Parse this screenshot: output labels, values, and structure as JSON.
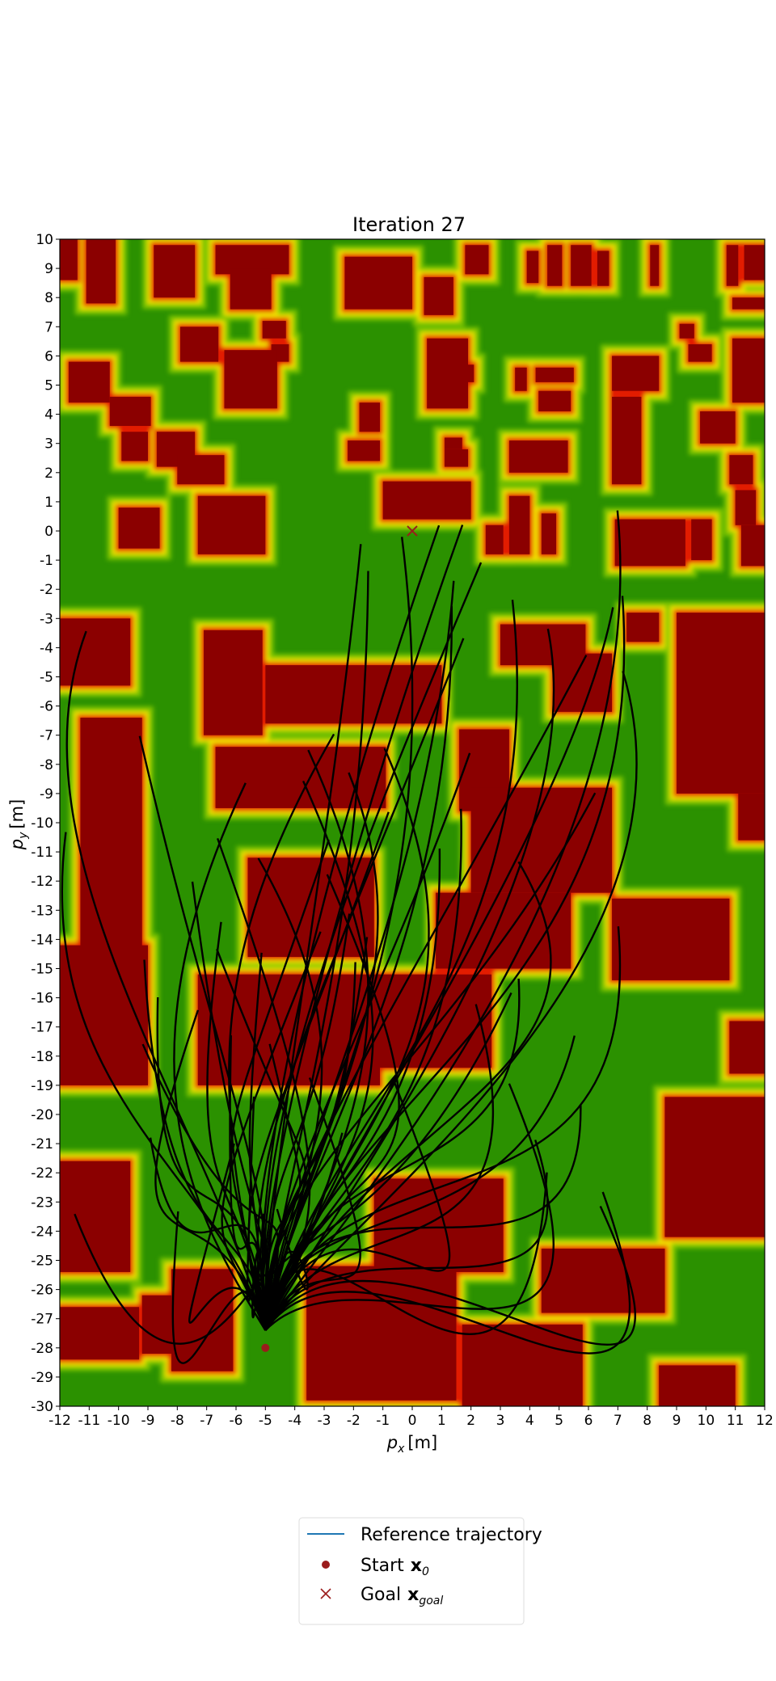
{
  "chart_data": {
    "type": "scatter",
    "title": "Iteration 27",
    "xlabel": "[m]",
    "xlabel_symbol": "p",
    "xlabel_sub": "x",
    "ylabel": "[m]",
    "ylabel_symbol": "p",
    "ylabel_sub": "y",
    "xlim": [
      -12,
      12
    ],
    "ylim": [
      -30,
      10
    ],
    "grid": false,
    "xticks": [
      "-12",
      "-11",
      "-10",
      "-9",
      "-8",
      "-7",
      "-6",
      "-5",
      "-4",
      "-3",
      "-2",
      "-1",
      "0",
      "1",
      "2",
      "3",
      "4",
      "5",
      "6",
      "7",
      "8",
      "9",
      "10",
      "11",
      "12"
    ],
    "yticks": [
      "10",
      "9",
      "8",
      "7",
      "6",
      "5",
      "4",
      "3",
      "2",
      "1",
      "0",
      "-1",
      "-2",
      "-3",
      "-4",
      "-5",
      "-6",
      "-7",
      "-8",
      "-9",
      "-10",
      "-11",
      "-12",
      "-13",
      "-14",
      "-15",
      "-16",
      "-17",
      "-18",
      "-19",
      "-20",
      "-21",
      "-22",
      "-23",
      "-24",
      "-25",
      "-26",
      "-27",
      "-28",
      "-29",
      "-30"
    ],
    "background": "costmap",
    "costmap_colors": {
      "low": "#2b9100",
      "mid_low": "#7cc400",
      "mid": "#f2e600",
      "mid_high": "#ff9a00",
      "high": "#e21a00",
      "obstacle": "#8b0000"
    },
    "obstacles": [
      {
        "x0": -12,
        "x1": -11.4,
        "y0": 8.6,
        "y1": 10
      },
      {
        "x0": -11.1,
        "x1": -10.1,
        "y0": 7.8,
        "y1": 10
      },
      {
        "x0": -8.8,
        "x1": -7.4,
        "y0": 8,
        "y1": 9.8
      },
      {
        "x0": -6.7,
        "x1": -4.2,
        "y0": 8.8,
        "y1": 9.8
      },
      {
        "x0": -6.2,
        "x1": -4.8,
        "y0": 7.6,
        "y1": 9
      },
      {
        "x0": -2.3,
        "x1": 0,
        "y0": 7.6,
        "y1": 9.4
      },
      {
        "x0": 0.4,
        "x1": 1.4,
        "y0": 7.4,
        "y1": 8.7
      },
      {
        "x0": 1.8,
        "x1": 2.6,
        "y0": 8.8,
        "y1": 9.8
      },
      {
        "x0": 3.9,
        "x1": 4.3,
        "y0": 8.5,
        "y1": 9.6
      },
      {
        "x0": 4.6,
        "x1": 5.1,
        "y0": 8.4,
        "y1": 9.8
      },
      {
        "x0": 5.4,
        "x1": 6.1,
        "y0": 8.4,
        "y1": 9.8
      },
      {
        "x0": 6.3,
        "x1": 6.7,
        "y0": 8.4,
        "y1": 9.6
      },
      {
        "x0": 8.1,
        "x1": 8.4,
        "y0": 8.4,
        "y1": 9.8
      },
      {
        "x0": 10.7,
        "x1": 11.1,
        "y0": 8.4,
        "y1": 9.8
      },
      {
        "x0": 11.3,
        "x1": 12,
        "y0": 8.6,
        "y1": 9.8
      },
      {
        "x0": 10.9,
        "x1": 12,
        "y0": 7.6,
        "y1": 8
      },
      {
        "x0": -7.9,
        "x1": -6.6,
        "y0": 5.8,
        "y1": 7
      },
      {
        "x0": -5.1,
        "x1": -4.3,
        "y0": 6.6,
        "y1": 7.2
      },
      {
        "x0": -4.8,
        "x1": -4.2,
        "y0": 5.8,
        "y1": 6.4
      },
      {
        "x0": -6.4,
        "x1": -4.6,
        "y0": 4.2,
        "y1": 6.2
      },
      {
        "x0": 0.5,
        "x1": 1.9,
        "y0": 4.2,
        "y1": 6.6
      },
      {
        "x0": 1.7,
        "x1": 2.1,
        "y0": 5.1,
        "y1": 5.7
      },
      {
        "x0": 3.5,
        "x1": 3.9,
        "y0": 4.8,
        "y1": 5.6
      },
      {
        "x0": 4.2,
        "x1": 5.5,
        "y0": 5.1,
        "y1": 5.6
      },
      {
        "x0": 4.3,
        "x1": 5.4,
        "y0": 4.1,
        "y1": 4.8
      },
      {
        "x0": 6.8,
        "x1": 8.4,
        "y0": 4.8,
        "y1": 6
      },
      {
        "x0": 9.1,
        "x1": 9.6,
        "y0": 6.6,
        "y1": 7.1
      },
      {
        "x0": 9.4,
        "x1": 10.2,
        "y0": 5.8,
        "y1": 6.4
      },
      {
        "x0": 10.9,
        "x1": 12,
        "y0": 4.4,
        "y1": 6.6
      },
      {
        "x0": -11.7,
        "x1": -10.3,
        "y0": 4.4,
        "y1": 5.8
      },
      {
        "x0": -10.3,
        "x1": -8.9,
        "y0": 3.6,
        "y1": 4.6
      },
      {
        "x0": -9.9,
        "x1": -9,
        "y0": 2.4,
        "y1": 3.4
      },
      {
        "x0": -8.7,
        "x1": -7.4,
        "y0": 2.2,
        "y1": 3.4
      },
      {
        "x0": -1.8,
        "x1": -1.1,
        "y0": 3.4,
        "y1": 4.4
      },
      {
        "x0": -2.2,
        "x1": -1.1,
        "y0": 2.4,
        "y1": 3.1
      },
      {
        "x0": 1.1,
        "x1": 1.7,
        "y0": 2.8,
        "y1": 3.2
      },
      {
        "x0": 1.1,
        "x1": 1.9,
        "y0": 2.2,
        "y1": 2.8
      },
      {
        "x0": 3.3,
        "x1": 5.3,
        "y0": 2,
        "y1": 3.1
      },
      {
        "x0": 6.8,
        "x1": 7.8,
        "y0": 1.6,
        "y1": 4.6
      },
      {
        "x0": 9.8,
        "x1": 11,
        "y0": 3,
        "y1": 4.1
      },
      {
        "x0": 10.8,
        "x1": 11.6,
        "y0": 1.6,
        "y1": 2.6
      },
      {
        "x0": -8,
        "x1": -6.4,
        "y0": 1.6,
        "y1": 2.6
      },
      {
        "x0": -1,
        "x1": 2,
        "y0": 0.4,
        "y1": 1.7
      },
      {
        "x0": 3.3,
        "x1": 4,
        "y0": -0.8,
        "y1": 1.2
      },
      {
        "x0": 2.5,
        "x1": 3.1,
        "y0": -0.8,
        "y1": 0.2
      },
      {
        "x0": 4.4,
        "x1": 4.9,
        "y0": -0.8,
        "y1": 0.6
      },
      {
        "x0": -10,
        "x1": -8.6,
        "y0": -0.6,
        "y1": 0.8
      },
      {
        "x0": -7.3,
        "x1": -5,
        "y0": -0.8,
        "y1": 1.2
      },
      {
        "x0": 6.9,
        "x1": 9.3,
        "y0": -1.2,
        "y1": 0.4
      },
      {
        "x0": 9.5,
        "x1": 10.2,
        "y0": -1,
        "y1": 0.4
      },
      {
        "x0": 11,
        "x1": 11.7,
        "y0": 0.2,
        "y1": 1.4
      },
      {
        "x0": 11.2,
        "x1": 12,
        "y0": -1.2,
        "y1": 0.2
      },
      {
        "x0": -12,
        "x1": -9.6,
        "y0": -5.3,
        "y1": -3
      },
      {
        "x0": -7.1,
        "x1": -5.1,
        "y0": -7,
        "y1": -3.4
      },
      {
        "x0": -5,
        "x1": 1,
        "y0": -6.6,
        "y1": -4.6
      },
      {
        "x0": 3,
        "x1": 5.9,
        "y0": -4.6,
        "y1": -3.2
      },
      {
        "x0": 4.8,
        "x1": 6.8,
        "y0": -6.2,
        "y1": -4.2
      },
      {
        "x0": 7.3,
        "x1": 8.4,
        "y0": -3.8,
        "y1": -2.8
      },
      {
        "x0": 9,
        "x1": 12,
        "y0": -9,
        "y1": -2.8
      },
      {
        "x0": 11.1,
        "x1": 12,
        "y0": -10.6,
        "y1": -9
      },
      {
        "x0": -11.3,
        "x1": -9.2,
        "y0": -19,
        "y1": -6.4
      },
      {
        "x0": -6.7,
        "x1": -0.9,
        "y0": -9.5,
        "y1": -7.4
      },
      {
        "x0": 1.6,
        "x1": 3.3,
        "y0": -9.6,
        "y1": -6.8
      },
      {
        "x0": 2,
        "x1": 6.8,
        "y0": -12.4,
        "y1": -8.8
      },
      {
        "x0": -5.6,
        "x1": -1.3,
        "y0": -14.6,
        "y1": -11.2
      },
      {
        "x0": 0.8,
        "x1": 5.4,
        "y0": -15,
        "y1": -12.4
      },
      {
        "x0": -12,
        "x1": -9,
        "y0": -19,
        "y1": -14.2
      },
      {
        "x0": -7.3,
        "x1": -1.1,
        "y0": -19,
        "y1": -15.2
      },
      {
        "x0": -1.2,
        "x1": 2.7,
        "y0": -18.4,
        "y1": -15.2
      },
      {
        "x0": 6.8,
        "x1": 10.8,
        "y0": -15.4,
        "y1": -12.6
      },
      {
        "x0": 10.8,
        "x1": 12,
        "y0": -18.6,
        "y1": -16.8
      },
      {
        "x0": 8.6,
        "x1": 12,
        "y0": -24.2,
        "y1": -19.4
      },
      {
        "x0": -12,
        "x1": -9.6,
        "y0": -25.4,
        "y1": -21.6
      },
      {
        "x0": -1.3,
        "x1": 3.1,
        "y0": -25.4,
        "y1": -22.2
      },
      {
        "x0": 4.4,
        "x1": 8.6,
        "y0": -26.8,
        "y1": -24.6
      },
      {
        "x0": -12,
        "x1": -9.3,
        "y0": -28.4,
        "y1": -26.6
      },
      {
        "x0": -9.2,
        "x1": -8.1,
        "y0": -28.2,
        "y1": -26.2
      },
      {
        "x0": -8.2,
        "x1": -6.1,
        "y0": -28.8,
        "y1": -25.3
      },
      {
        "x0": -3.6,
        "x1": 1.5,
        "y0": -29.8,
        "y1": -25.2
      },
      {
        "x0": 1.7,
        "x1": 5.8,
        "y0": -30,
        "y1": -27.2
      },
      {
        "x0": 8.4,
        "x1": 11,
        "y0": -30,
        "y1": -28.6
      }
    ],
    "start": {
      "x": -5,
      "y": -28
    },
    "goal": {
      "x": 0,
      "y": 0
    },
    "trajectory_color": "#000000",
    "marker_color": "#9b1c1c",
    "legend_position": "bottom-center",
    "legend": [
      {
        "label": "Reference trajectory",
        "marker": "line",
        "color": "#1f77b4"
      },
      {
        "label": "Start",
        "math": "x",
        "math_sub": "0",
        "marker": "dot",
        "color": "#9b1c1c"
      },
      {
        "label": "Goal",
        "math": "x",
        "math_sub": "goal",
        "marker": "cross",
        "color": "#9b1c1c"
      }
    ]
  }
}
